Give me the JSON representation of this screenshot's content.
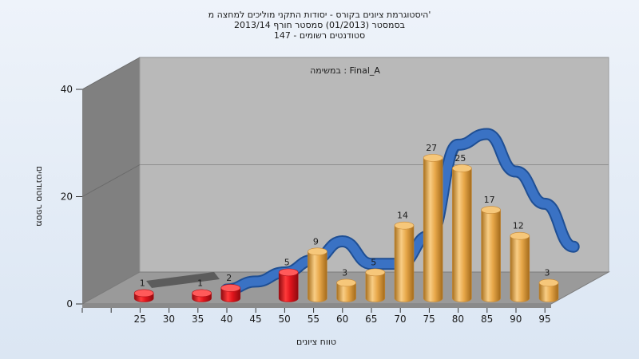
{
  "chart_data": {
    "type": "bar",
    "title_lines": [
      "היסטוגרמת ציונים בקורס - יסודות התקני מוליכים למחצה מ'",
      "בסמסטר  (01/2013)  סמסטר חורף 2013/14",
      "סטודנטים רשומים - 147"
    ],
    "annotation": "במשימה : Final_A",
    "xlabel": "טווח ציונים",
    "ylabel": "מספר סטודנטים",
    "categories": [
      "25",
      "30",
      "35",
      "40",
      "45",
      "50",
      "55",
      "60",
      "65",
      "70",
      "75",
      "80",
      "85",
      "90",
      "95"
    ],
    "bars": [
      {
        "x": 25,
        "value": 1,
        "label": "1",
        "color": "red"
      },
      {
        "x": 35,
        "value": 1,
        "label": "1",
        "color": "red"
      },
      {
        "x": 40,
        "value": 2,
        "label": "2",
        "color": "red"
      },
      {
        "x": 50,
        "value": 5,
        "label": "5",
        "color": "red"
      },
      {
        "x": 55,
        "value": 9,
        "label": "9",
        "color": "orange"
      },
      {
        "x": 60,
        "value": 3,
        "label": "3",
        "color": "orange"
      },
      {
        "x": 65,
        "value": 5,
        "label": "5",
        "color": "orange"
      },
      {
        "x": 70,
        "value": 14,
        "label": "14",
        "color": "orange"
      },
      {
        "x": 75,
        "value": 27,
        "label": "27",
        "color": "orange"
      },
      {
        "x": 80,
        "value": 25,
        "label": "25",
        "color": "orange"
      },
      {
        "x": 85,
        "value": 17,
        "label": "17",
        "color": "orange"
      },
      {
        "x": 90,
        "value": 12,
        "label": "12",
        "color": "orange"
      },
      {
        "x": 95,
        "value": 3,
        "label": "3",
        "color": "orange"
      }
    ],
    "curve": {
      "x": [
        40,
        45,
        50,
        55,
        60,
        65,
        70,
        75,
        80,
        85,
        90,
        95,
        100
      ],
      "y": [
        0,
        1.5,
        3.2,
        5.5,
        9,
        4.8,
        4.8,
        10,
        27,
        29,
        22,
        16,
        8
      ]
    },
    "yticks": [
      0,
      20,
      40
    ],
    "ylim": [
      0,
      40
    ],
    "grid": true,
    "colors": {
      "red_bar": "#e0141c",
      "orange_bar": "#e8a84a",
      "curve": "#3a72c4",
      "floor": "#9a9a9a",
      "back_wall": "#b9b9b9",
      "side_wall": "#808080"
    }
  }
}
